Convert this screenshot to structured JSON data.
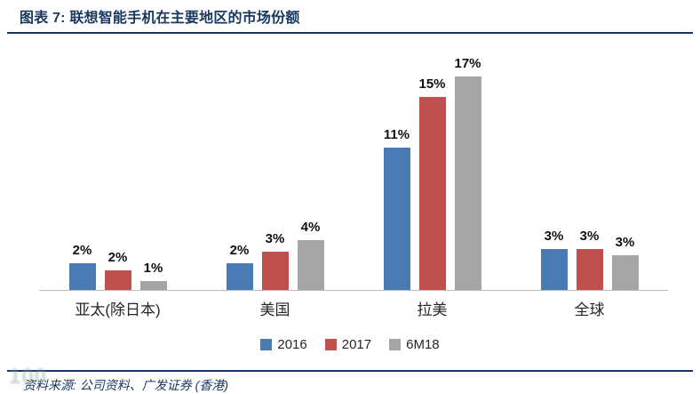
{
  "header": {
    "title": "图表 7: 联想智能手机在主要地区的市场份额"
  },
  "chart_data": {
    "type": "bar",
    "title": "图表 7: 联想智能手机在主要地区的市场份额",
    "categories": [
      "亚太(除日本)",
      "美国",
      "拉美",
      "全球"
    ],
    "series": [
      {
        "name": "2016",
        "color": "#4A7AB4",
        "values": [
          2,
          2,
          11,
          3
        ],
        "labels": [
          "2%",
          "2%",
          "11%",
          "3%"
        ],
        "est_values": [
          2.1,
          2.1,
          11.1,
          3.2
        ]
      },
      {
        "name": "2017",
        "color": "#C0504D",
        "values": [
          2,
          3,
          15,
          3
        ],
        "labels": [
          "2%",
          "3%",
          "15%",
          "3%"
        ],
        "est_values": [
          1.5,
          3.0,
          15.1,
          3.2
        ]
      },
      {
        "name": "6M18",
        "color": "#A5A5A5",
        "values": [
          1,
          4,
          17,
          3
        ],
        "labels": [
          "1%",
          "4%",
          "17%",
          "3%"
        ],
        "est_values": [
          0.7,
          3.9,
          16.7,
          2.7
        ]
      }
    ],
    "unit": "%",
    "ylim": [
      0,
      18
    ],
    "grid": false,
    "y_axis_visible": false,
    "legend_position": "bottom",
    "value_labels": "above-bars"
  },
  "footer": {
    "source": "资料来源: 公司资料、广发证券 (香港)"
  },
  "watermark": {
    "text": "100"
  },
  "colors": {
    "accent_navy": "#17375E",
    "axis_line": "#BFBFBF",
    "bar_blue": "#4A7AB4",
    "bar_red": "#C0504D",
    "bar_gray": "#A5A5A5"
  }
}
